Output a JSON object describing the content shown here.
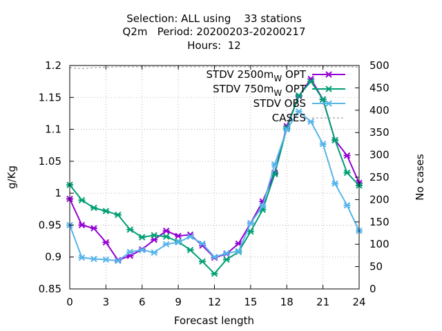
{
  "chart_data": {
    "type": "line",
    "title_lines": [
      "Selection: ALL using    33 stations",
      "Q2m   Period: 20200203-20200217",
      "Hours:  12"
    ],
    "xlabel": "Forecast length",
    "ylabel": "g/Kg",
    "y2label": "No cases",
    "xlim": [
      0,
      24
    ],
    "ylim": [
      0.85,
      1.2
    ],
    "y2lim": [
      0,
      500
    ],
    "xticks": [
      "0",
      "3",
      "6",
      "9",
      "12",
      "15",
      "18",
      "21",
      "24"
    ],
    "yticks": [
      "0.85",
      "0.9",
      "0.95",
      "1",
      "1.05",
      "1.1",
      "1.15",
      "1.2"
    ],
    "y2ticks": [
      "0",
      "50",
      "100",
      "150",
      "200",
      "250",
      "300",
      "350",
      "400",
      "450",
      "500"
    ],
    "grid": true,
    "legend_position": "top-right",
    "x": [
      0,
      1,
      2,
      3,
      4,
      5,
      6,
      7,
      8,
      9,
      10,
      11,
      12,
      13,
      14,
      15,
      16,
      17,
      18,
      19,
      20,
      21,
      22,
      23,
      24
    ],
    "series": [
      {
        "name": "STDV 2500m",
        "name_sub": "W",
        "name_suffix": " OPT",
        "color": "#9400d3",
        "values": [
          0.991,
          0.95,
          0.945,
          0.923,
          0.895,
          0.902,
          0.912,
          0.927,
          0.941,
          0.933,
          0.935,
          0.918,
          0.899,
          0.905,
          0.921,
          0.953,
          0.987,
          1.032,
          1.105,
          1.152,
          1.179,
          1.147,
          1.083,
          1.059,
          1.016
        ]
      },
      {
        "name": "STDV 750m",
        "name_sub": "W",
        "name_suffix": " OPT",
        "color": "#009e73",
        "values": [
          1.013,
          0.989,
          0.977,
          0.972,
          0.966,
          0.943,
          0.931,
          0.934,
          0.932,
          0.924,
          0.911,
          0.893,
          0.874,
          0.896,
          0.908,
          0.94,
          0.974,
          1.03,
          1.102,
          1.153,
          1.175,
          1.147,
          1.083,
          1.032,
          1.012
        ]
      },
      {
        "name": "STDV OBS",
        "name_sub": "",
        "name_suffix": "",
        "color": "#56b4e9",
        "values": [
          0.95,
          0.899,
          0.897,
          0.896,
          0.894,
          0.908,
          0.911,
          0.907,
          0.92,
          0.923,
          0.932,
          0.921,
          0.9,
          0.906,
          0.909,
          0.953,
          0.98,
          1.045,
          1.1,
          1.128,
          1.112,
          1.077,
          1.015,
          0.981,
          0.941
        ]
      },
      {
        "name": "CASES",
        "name_sub": "",
        "name_suffix": "",
        "color": "#a0a0a0",
        "axis": "y2",
        "values": [
          495,
          493,
          495,
          496,
          497,
          497,
          497,
          497,
          497,
          497,
          497,
          497,
          497,
          497,
          497,
          497,
          497,
          497,
          497,
          497,
          497,
          497,
          497,
          497,
          496
        ]
      }
    ]
  }
}
